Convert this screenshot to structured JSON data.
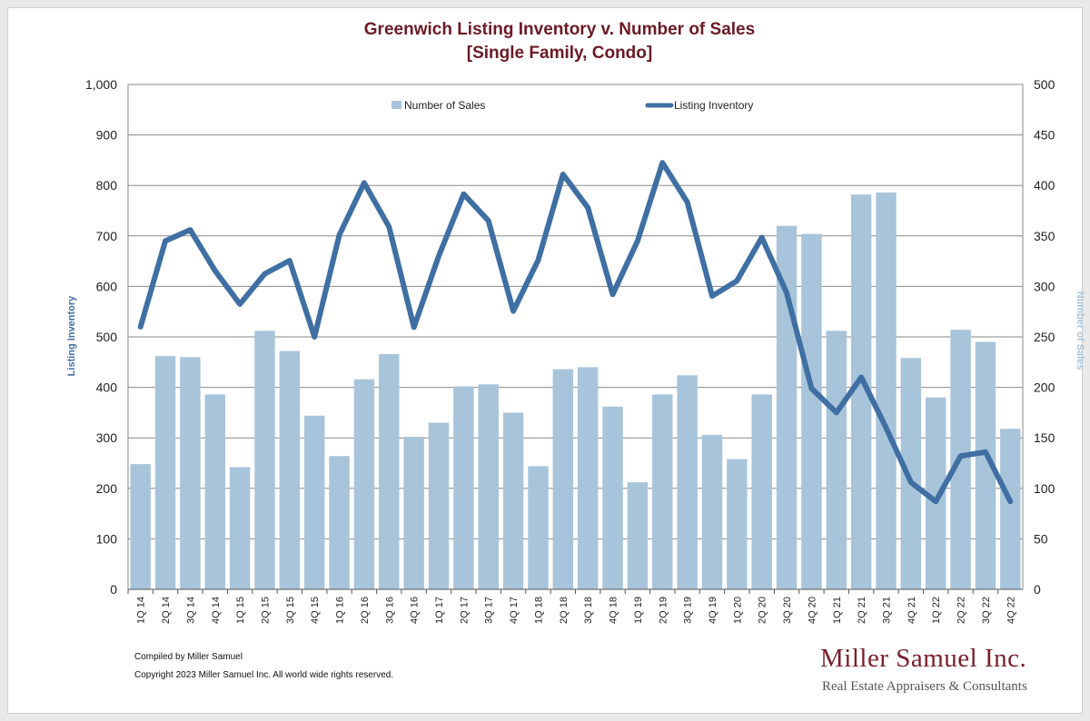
{
  "chart_data": {
    "type": "bar",
    "title_lines": [
      "Greenwich Listing Inventory v. Number of Sales",
      "[Single Family, Condo]"
    ],
    "categories": [
      "1Q 14",
      "2Q 14",
      "3Q 14",
      "4Q 14",
      "1Q 15",
      "2Q 15",
      "3Q 15",
      "4Q 15",
      "1Q 16",
      "2Q 16",
      "3Q 16",
      "4Q 16",
      "1Q 17",
      "2Q 17",
      "3Q 17",
      "4Q 17",
      "1Q 18",
      "2Q 18",
      "3Q 18",
      "4Q 18",
      "1Q 19",
      "2Q 19",
      "3Q 19",
      "4Q 19",
      "1Q 20",
      "2Q 20",
      "3Q 20",
      "4Q 20",
      "1Q 21",
      "2Q 21",
      "3Q 21",
      "4Q 21",
      "1Q 22",
      "2Q 22",
      "3Q 22",
      "4Q 22"
    ],
    "series": [
      {
        "name": "Number of Sales",
        "type": "bar",
        "axis": "right",
        "color": "#a8c4da",
        "values": [
          124,
          231,
          230,
          193,
          121,
          256,
          236,
          172,
          132,
          208,
          233,
          151,
          165,
          201,
          203,
          175,
          122,
          218,
          220,
          181,
          106,
          193,
          212,
          153,
          129,
          193,
          360,
          352,
          256,
          391,
          393,
          229,
          190,
          257,
          245,
          159
        ]
      },
      {
        "name": "Listing Inventory",
        "type": "line",
        "axis": "left",
        "color": "#3f6fa3",
        "values": [
          520,
          690,
          712,
          631,
          565,
          625,
          651,
          500,
          702,
          805,
          718,
          519,
          660,
          783,
          730,
          551,
          652,
          822,
          756,
          584,
          690,
          845,
          767,
          581,
          611,
          697,
          587,
          398,
          350,
          420,
          320,
          212,
          174,
          264,
          272,
          174
        ]
      }
    ],
    "y_left": {
      "label": "Listing Inventory",
      "ylim": [
        0,
        1000
      ],
      "ticks": [
        "0",
        "100",
        "200",
        "300",
        "400",
        "500",
        "600",
        "700",
        "800",
        "900",
        "1,000"
      ],
      "label_color": "#3f6fa3"
    },
    "y_right": {
      "label": "Number of Sales",
      "ylim": [
        0,
        500
      ],
      "ticks": [
        "0",
        "50",
        "100",
        "150",
        "200",
        "250",
        "300",
        "350",
        "400",
        "450",
        "500"
      ],
      "label_color": "#a8c4da"
    },
    "grid": true,
    "legend": "top-center"
  },
  "footer": {
    "compiled": "Compiled by Miller Samuel",
    "copyright": "Copyright 2023 Miller Samuel Inc.  All world wide rights reserved."
  },
  "brand": {
    "name": "Miller Samuel Inc.",
    "tagline": "Real Estate Appraisers & Consultants"
  }
}
